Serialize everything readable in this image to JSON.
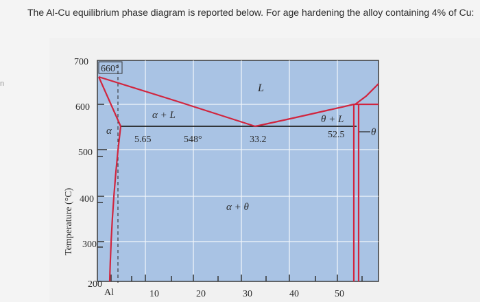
{
  "question": "The Al-Cu equilibrium phase diagram is reported below. For age hardening the alloy containing 4% of Cu:",
  "edge_fragment": "n",
  "diagram": {
    "y_axis_label": "Temperature (°C)",
    "y_ticks": [
      "700",
      "600",
      "500",
      "400",
      "300",
      "200"
    ],
    "x_ticks": [
      "Al",
      "10",
      "20",
      "30",
      "40",
      "50"
    ],
    "annotations": {
      "melting_point": "660°",
      "liquid": "L",
      "alpha_liquid": "α + L",
      "alpha": "α",
      "solubility_limit": "5.65",
      "eutectic_temp": "548°",
      "eutectic_comp": "33.2",
      "theta_liquid": "θ + L",
      "theta_comp": "52.5",
      "theta": "θ",
      "alpha_theta": "α + θ"
    },
    "colors": {
      "background": "#a9c3e4",
      "phase_lines": "#d1253e",
      "grid": "#ffffff"
    }
  }
}
